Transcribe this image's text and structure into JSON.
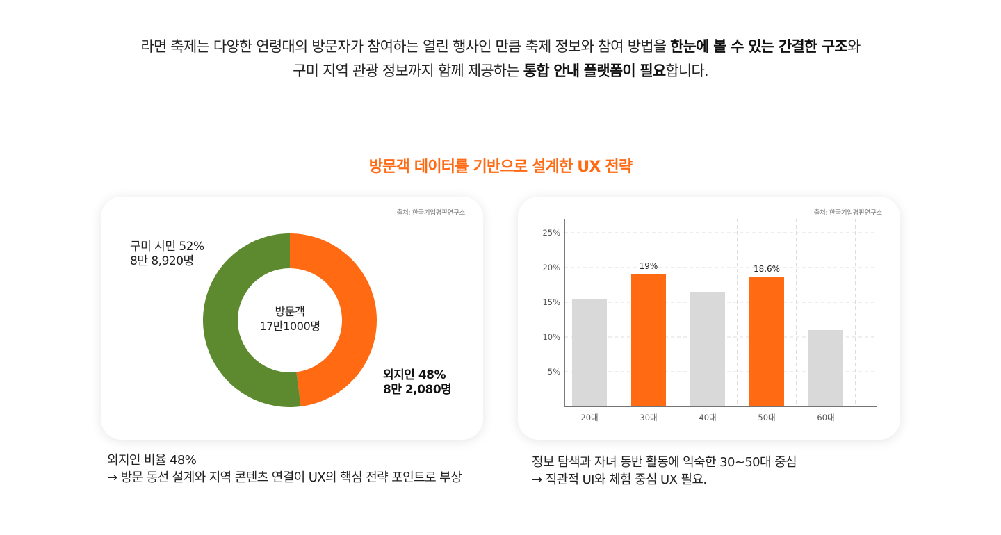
{
  "intro": {
    "line1_a": "라면 축제는 다양한 연령대의 방문자가 참여하는 열린 행사인 만큼  축제 정보와 참여 방법을 ",
    "line1_b": "한눈에 볼 수 있는 간결한 구조",
    "line1_c": "와",
    "line2_a": "구미 지역 관광 정보까지 함께 제공하는 ",
    "line2_b": "통합 안내 플랫폼이 필요",
    "line2_c": "합니다."
  },
  "section_title": "방문객 데이터를 기반으로 설계한 UX 전략",
  "colors": {
    "accent": "#ff6a13",
    "green": "#5d8a2e",
    "gray_bar": "#d9d9d9"
  },
  "donut_card": {
    "source": "출처: 한국기업평판연구소",
    "center_line1": "방문객",
    "center_line2": "17만1000명",
    "gumi_line1": "구미 시민 52%",
    "gumi_line2": "8만 8,920명",
    "out_line1": "외지인 48%",
    "out_line2": "8만 2,080명"
  },
  "bar_card": {
    "source": "출처: 한국기업평판연구소"
  },
  "captions": {
    "left_line1": "외지인 비율 48%",
    "left_line2": "→ 방문 동선 설계와 지역 콘텐츠 연결이 UX의 핵심 전략 포인트로 부상",
    "right_line1": "정보 탐색과 자녀 동반 활동에 익숙한 30~50대 중심",
    "right_line2": "→ 직관적 UI와 체험 중심 UX 필요."
  },
  "chart_data": [
    {
      "type": "pie",
      "title": "",
      "slices": [
        {
          "name": "외지인",
          "value": 48,
          "color": "#ff6a13"
        },
        {
          "name": "구미 시민",
          "value": 52,
          "color": "#5d8a2e"
        }
      ]
    },
    {
      "type": "bar",
      "title": "",
      "categories": [
        "20대",
        "30대",
        "40대",
        "50대",
        "60대"
      ],
      "values": [
        15.5,
        19,
        16.5,
        18.6,
        11
      ],
      "highlight": [
        false,
        true,
        false,
        true,
        false
      ],
      "data_labels": [
        "",
        "19%",
        "",
        "18.6%",
        ""
      ],
      "ylim": [
        0,
        25
      ],
      "yticks": [
        5,
        10,
        15,
        20,
        25
      ],
      "ytick_labels": [
        "5%",
        "10%",
        "15%",
        "20%",
        "25%"
      ],
      "xlabel": "",
      "ylabel": "",
      "grid": true
    }
  ]
}
